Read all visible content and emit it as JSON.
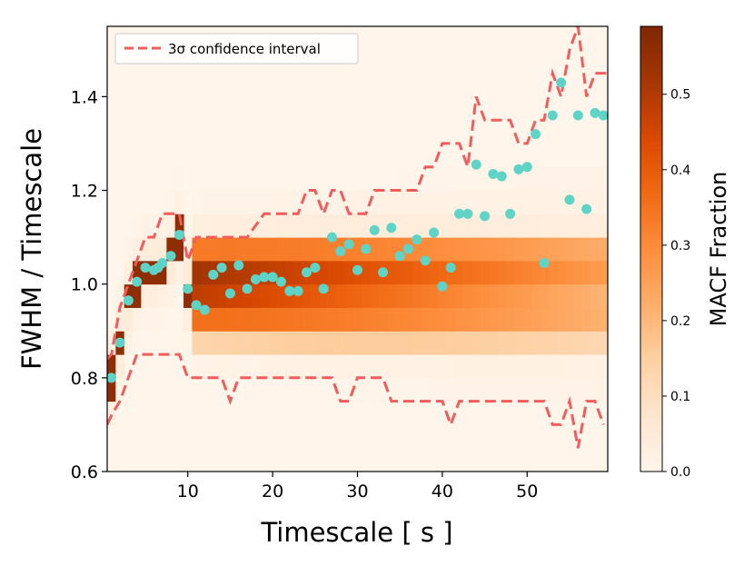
{
  "chart_data": {
    "type": "heatmap",
    "xlabel": "Timescale [ s ]",
    "ylabel": "FWHM / Timescale",
    "xlim": [
      0.5,
      59.5
    ],
    "ylim": [
      0.6,
      1.55
    ],
    "xticks": [
      10,
      20,
      30,
      40,
      50
    ],
    "yticks": [
      0.6,
      0.8,
      1.0,
      1.2,
      1.4
    ],
    "xtick_labels": [
      "10",
      "20",
      "30",
      "40",
      "50"
    ],
    "ytick_labels": [
      "0.6",
      "0.8",
      "1.0",
      "1.2",
      "1.4"
    ],
    "colorbar": {
      "label": "MACF Fraction",
      "range": [
        0,
        0.59
      ],
      "ticks": [
        0.0,
        0.1,
        0.2,
        0.3,
        0.4,
        0.5
      ],
      "tick_labels": [
        "0.0",
        "0.1",
        "0.2",
        "0.3",
        "0.4",
        "0.5"
      ],
      "colormap": "Oranges"
    },
    "legend": {
      "placement": "upper-left",
      "entries": [
        {
          "label": "3σ confidence interval",
          "label_sigma": "σ",
          "color": "#f25c5c",
          "style": "dashed"
        }
      ]
    },
    "confidence_upper": {
      "x": [
        0.5,
        1,
        2,
        3,
        4,
        5,
        6,
        7,
        8,
        9,
        10,
        11,
        12,
        13,
        15,
        17,
        19,
        20,
        22,
        23,
        24,
        25,
        26,
        27,
        28,
        29,
        30,
        31,
        32,
        33,
        35,
        37,
        38,
        39,
        40,
        41,
        42,
        43,
        44,
        45,
        46,
        47,
        48,
        49,
        50,
        51,
        52,
        53,
        54,
        55,
        56,
        57,
        58,
        59,
        59.5
      ],
      "y": [
        0.84,
        0.85,
        0.95,
        1.0,
        1.05,
        1.1,
        1.1,
        1.15,
        1.15,
        1.15,
        1.05,
        1.1,
        1.1,
        1.1,
        1.1,
        1.1,
        1.15,
        1.15,
        1.15,
        1.15,
        1.2,
        1.2,
        1.15,
        1.2,
        1.2,
        1.15,
        1.15,
        1.15,
        1.2,
        1.2,
        1.2,
        1.2,
        1.25,
        1.25,
        1.3,
        1.3,
        1.3,
        1.25,
        1.4,
        1.35,
        1.35,
        1.35,
        1.35,
        1.3,
        1.3,
        1.35,
        1.35,
        1.45,
        1.4,
        1.5,
        1.55,
        1.4,
        1.45,
        1.45,
        1.45
      ]
    },
    "confidence_lower": {
      "x": [
        0.5,
        1,
        2,
        3,
        4,
        5,
        6,
        7,
        8,
        9,
        10,
        11,
        12,
        13,
        14,
        15,
        16,
        17,
        18,
        19,
        20,
        25,
        27,
        28,
        29,
        30,
        31,
        33,
        34,
        35,
        36,
        40,
        41,
        42,
        43,
        45,
        47,
        48,
        49,
        50,
        51,
        52,
        53,
        54,
        55,
        56,
        57,
        58,
        59
      ],
      "y": [
        0.7,
        0.72,
        0.75,
        0.8,
        0.85,
        0.85,
        0.85,
        0.85,
        0.85,
        0.85,
        0.8,
        0.8,
        0.8,
        0.8,
        0.8,
        0.75,
        0.8,
        0.8,
        0.8,
        0.8,
        0.8,
        0.8,
        0.8,
        0.75,
        0.75,
        0.8,
        0.8,
        0.8,
        0.75,
        0.75,
        0.75,
        0.75,
        0.7,
        0.75,
        0.75,
        0.75,
        0.75,
        0.75,
        0.75,
        0.75,
        0.75,
        0.75,
        0.7,
        0.7,
        0.75,
        0.65,
        0.75,
        0.75,
        0.7
      ]
    },
    "macf_scatter": {
      "color": "#5fd4c6",
      "x": [
        1,
        2,
        3,
        4,
        5,
        6,
        6.5,
        7,
        8,
        9,
        10,
        11,
        12,
        13,
        14,
        15,
        16,
        17,
        18,
        19,
        20,
        21,
        22,
        23,
        24,
        25,
        26,
        27,
        28,
        29,
        30,
        31,
        32,
        33,
        34,
        35,
        36,
        37,
        38,
        39,
        40,
        41,
        42,
        43,
        44,
        45,
        46,
        47,
        48,
        49,
        50,
        51,
        52,
        53,
        54,
        55,
        56,
        57,
        58,
        59
      ],
      "y": [
        0.8,
        0.875,
        0.965,
        1.005,
        1.035,
        1.03,
        1.035,
        1.045,
        1.06,
        1.105,
        0.99,
        0.955,
        0.945,
        1.02,
        1.035,
        0.98,
        1.04,
        0.99,
        1.01,
        1.015,
        1.015,
        1.005,
        0.985,
        0.985,
        1.025,
        1.035,
        0.99,
        1.1,
        1.07,
        1.085,
        1.03,
        1.075,
        1.115,
        1.025,
        1.12,
        1.06,
        1.075,
        1.095,
        1.05,
        1.11,
        0.995,
        1.035,
        1.15,
        1.15,
        1.255,
        1.145,
        1.235,
        1.23,
        1.15,
        1.245,
        1.25,
        1.32,
        1.045,
        1.36,
        1.43,
        1.18,
        1.36,
        1.16,
        1.365,
        1.36
      ]
    },
    "heatmap_y_bins": [
      0.55,
      0.6,
      0.65,
      0.7,
      0.75,
      0.8,
      0.85,
      0.9,
      0.95,
      1.0,
      1.05,
      1.1,
      1.15,
      1.2,
      1.25,
      1.3,
      1.35,
      1.4,
      1.45,
      1.5,
      1.55
    ],
    "heatmap_values_note": "peak fraction per column centered along the MACF ridge; rows 0.95-1.0 and 1.0-1.05 densest"
  }
}
